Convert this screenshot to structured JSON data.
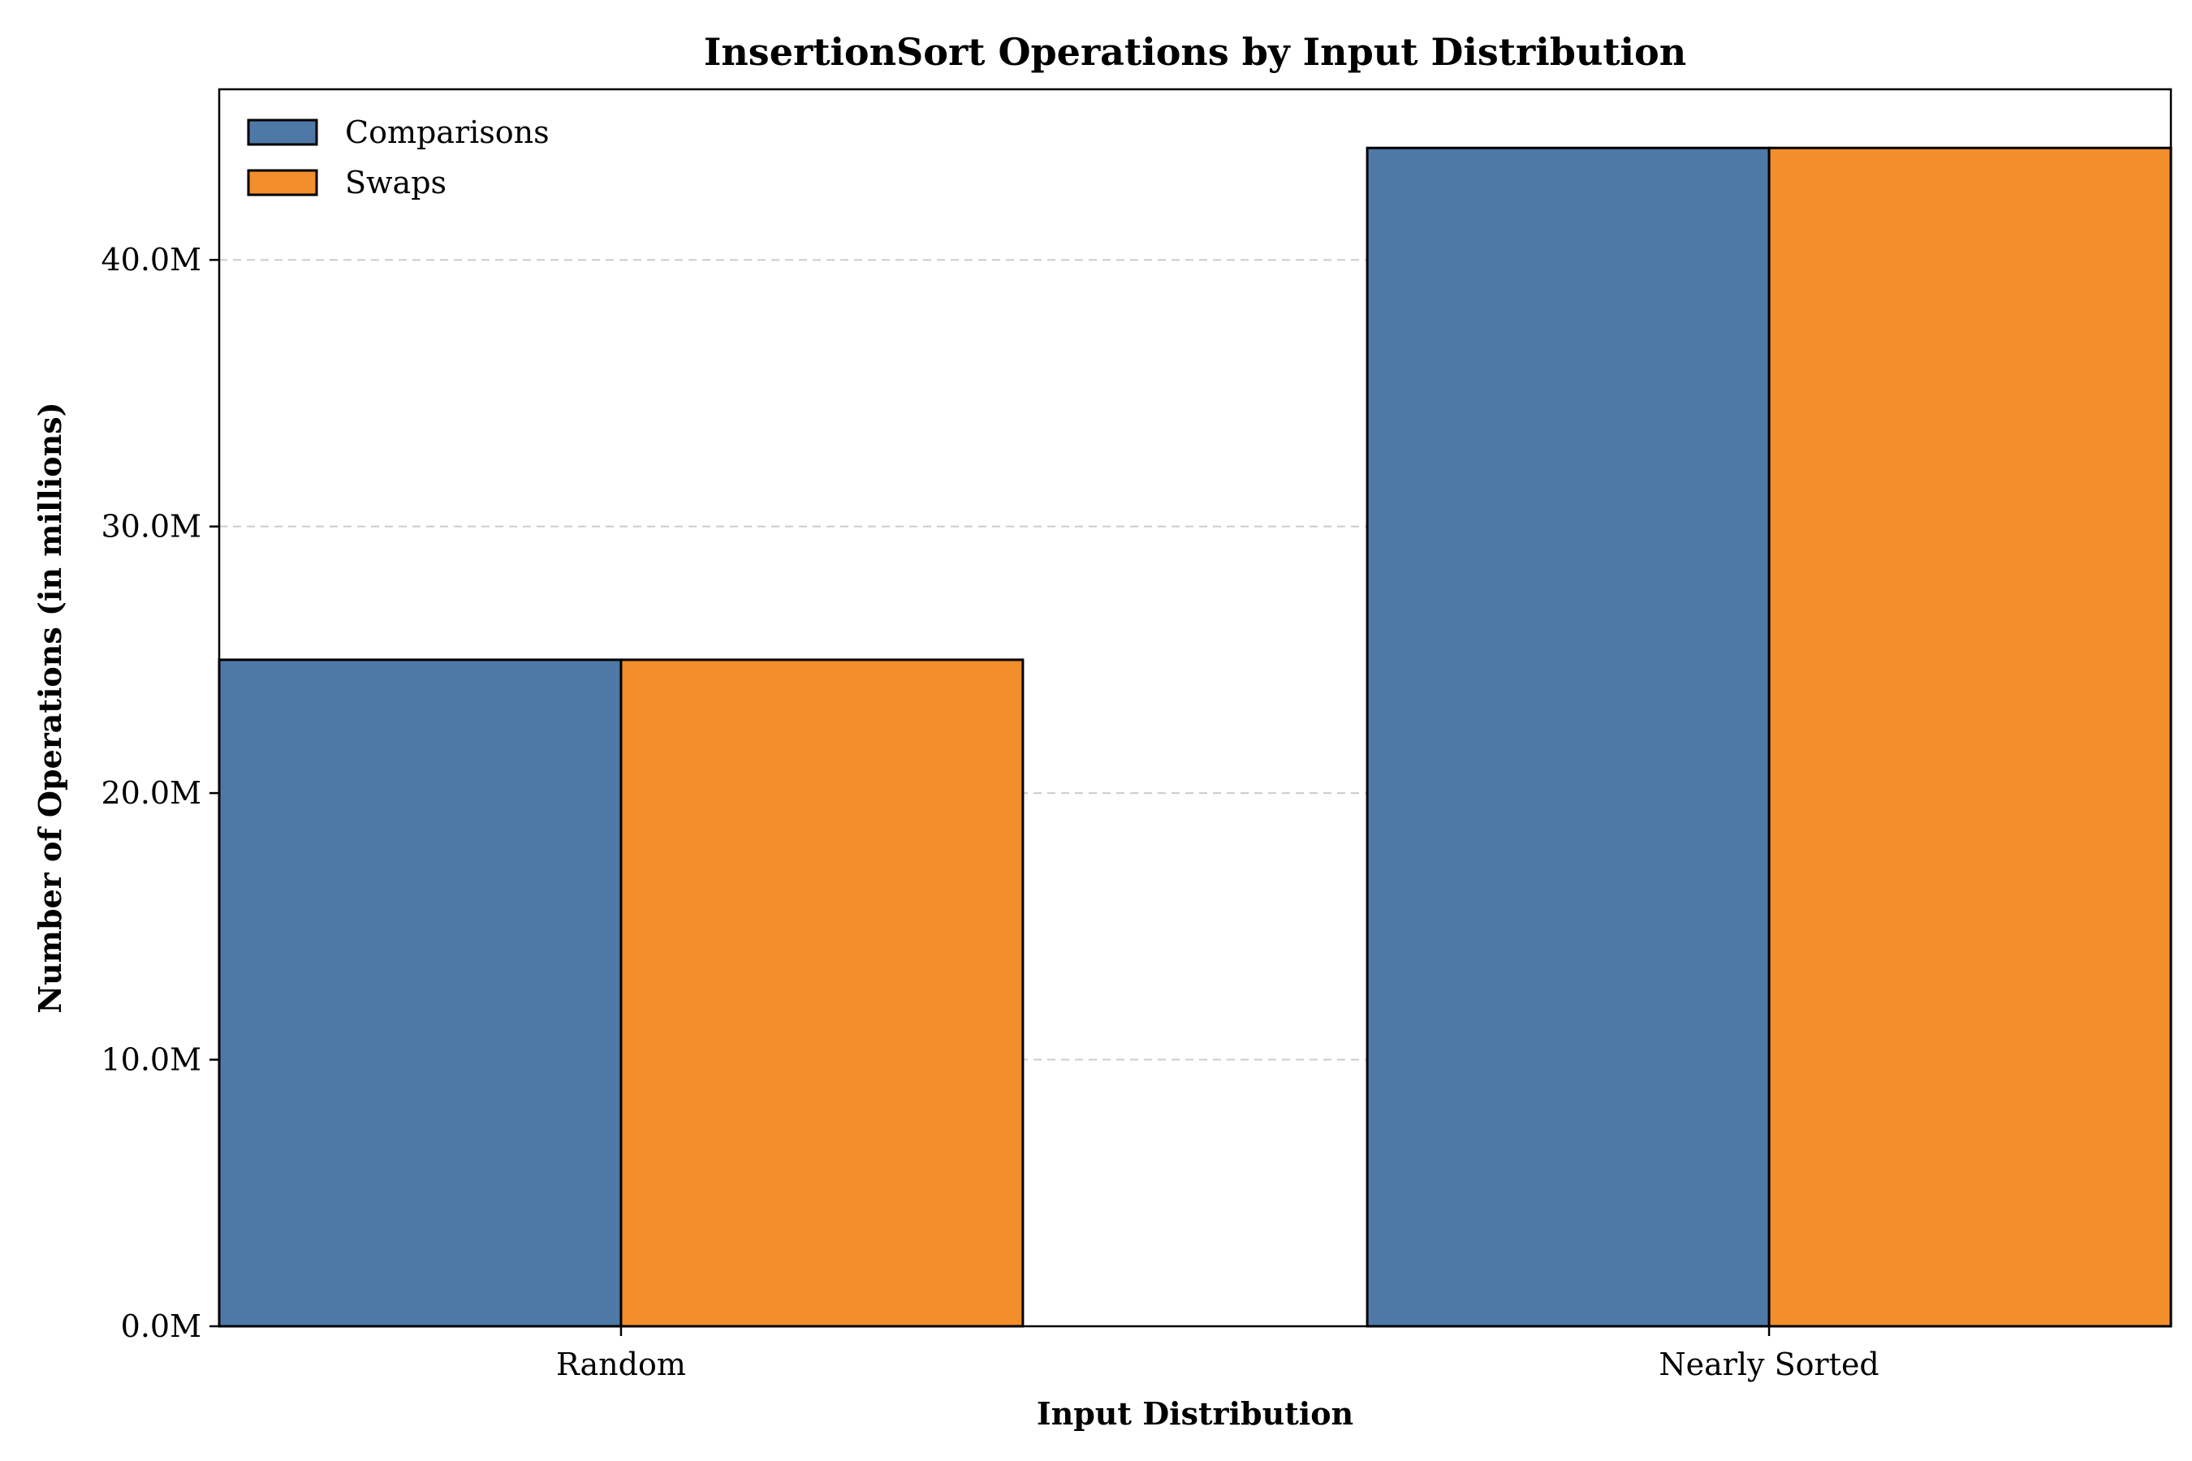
{
  "chart_data": {
    "type": "bar",
    "title": "InsertionSort Operations by Input Distribution",
    "xlabel": "Input Distribution",
    "ylabel": "Number of Operations (in millions)",
    "categories": [
      "Random",
      "Nearly Sorted"
    ],
    "series": [
      {
        "name": "Comparisons",
        "color": "#4e79a7",
        "values": [
          25.0,
          44.2
        ]
      },
      {
        "name": "Swaps",
        "color": "#f28e2b",
        "values": [
          25.0,
          44.2
        ]
      }
    ],
    "ylim": [
      0,
      46.4
    ],
    "yticks": [
      0,
      10,
      20,
      30,
      40
    ],
    "ytick_labels": [
      "0.0M",
      "10.0M",
      "20.0M",
      "30.0M",
      "40.0M"
    ],
    "grid": "y-dashed",
    "legend_position": "top-left"
  }
}
